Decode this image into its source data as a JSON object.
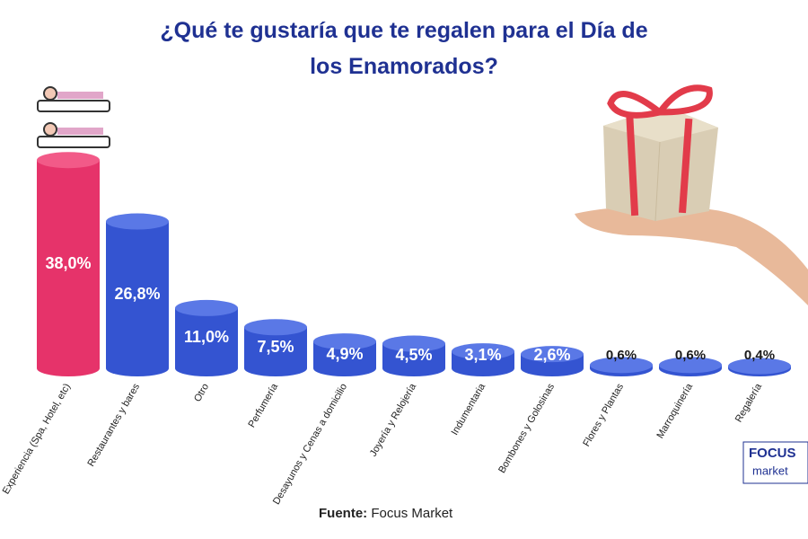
{
  "chart_data": {
    "type": "bar",
    "title": "¿Qué te gustaría que te regalen para el Día de los Enamorados?",
    "categories": [
      "Experiencia (Spa, Hotel, etc)",
      "Restaurantes y bares",
      "Otro",
      "Perfumería",
      "Desayunos y Cenas a domicilio",
      "Joyería y Relojería",
      "Indumentaria",
      "Bombones y Golosinas",
      "Flores y Plantas",
      "Marroquinería",
      "Regalería"
    ],
    "values": [
      38.0,
      26.8,
      11.0,
      7.5,
      4.9,
      4.5,
      3.1,
      2.6,
      0.6,
      0.6,
      0.4
    ],
    "value_labels": [
      "38,0%",
      "26,8%",
      "11,0%",
      "7,5%",
      "4,9%",
      "4,5%",
      "3,1%",
      "2,6%",
      "0,6%",
      "0,6%",
      "0,4%"
    ],
    "colors": [
      "#e6336a",
      "#3454d1",
      "#3454d1",
      "#3454d1",
      "#3454d1",
      "#3454d1",
      "#3454d1",
      "#3454d1",
      "#3454d1",
      "#3454d1",
      "#3454d1"
    ]
  },
  "source": {
    "label": "Fuente:",
    "text": "Focus Market"
  },
  "logo": {
    "line1": "FOCUS",
    "line2": "market"
  }
}
